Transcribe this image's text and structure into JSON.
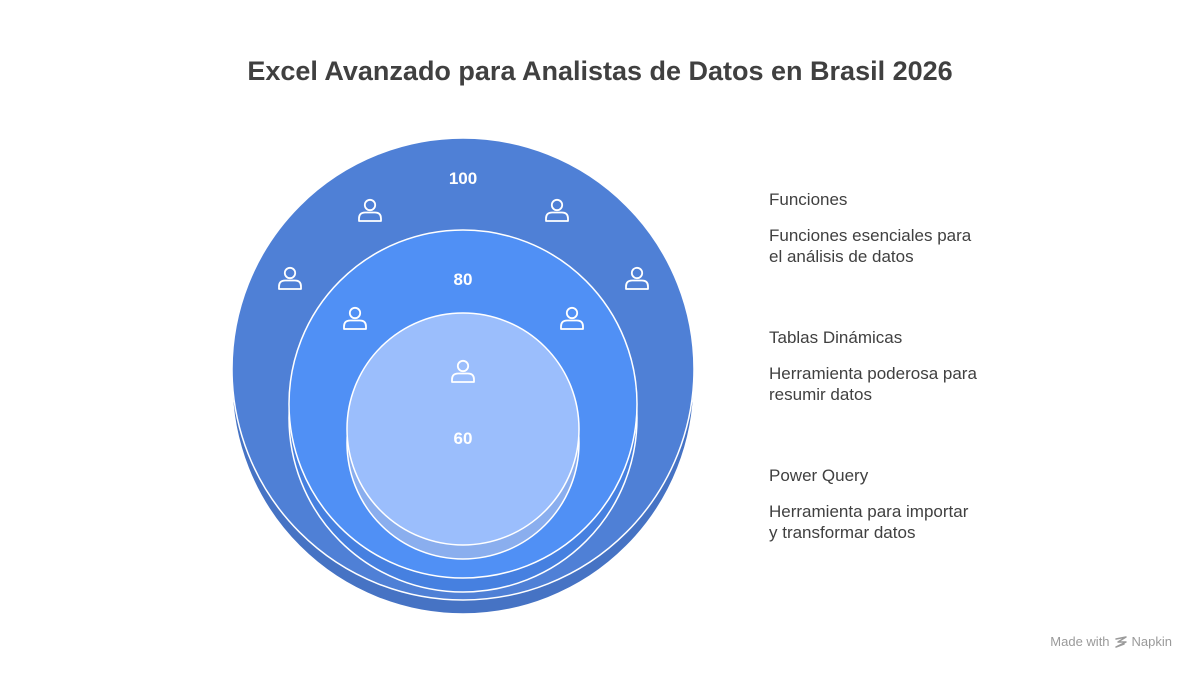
{
  "title": "Excel Avanzado para Analistas de Datos en Brasil 2026",
  "colors": {
    "outer": "#4f80d6",
    "outer_shadow": "#4673c4",
    "middle": "#5090f5",
    "middle_shadow": "#4680e0",
    "inner": "#9bbefc",
    "inner_shadow": "#8aaeee",
    "stroke": "#ffffff",
    "text": "#404040"
  },
  "circles": [
    {
      "value": "100",
      "name": "Funciones",
      "description": "Funciones esenciales para el análisis de datos",
      "icon": "person-icon",
      "icon_count": 4
    },
    {
      "value": "80",
      "name": "Tablas Dinámicas",
      "description": "Herramienta poderosa para resumir datos",
      "icon": "person-icon",
      "icon_count": 2
    },
    {
      "value": "60",
      "name": "Power Query",
      "description": "Herramienta para importar y transformar datos",
      "icon": "person-icon",
      "icon_count": 1
    }
  ],
  "watermark": {
    "prefix": "Made with",
    "brand": "Napkin",
    "icon": "napkin-logo-icon"
  }
}
